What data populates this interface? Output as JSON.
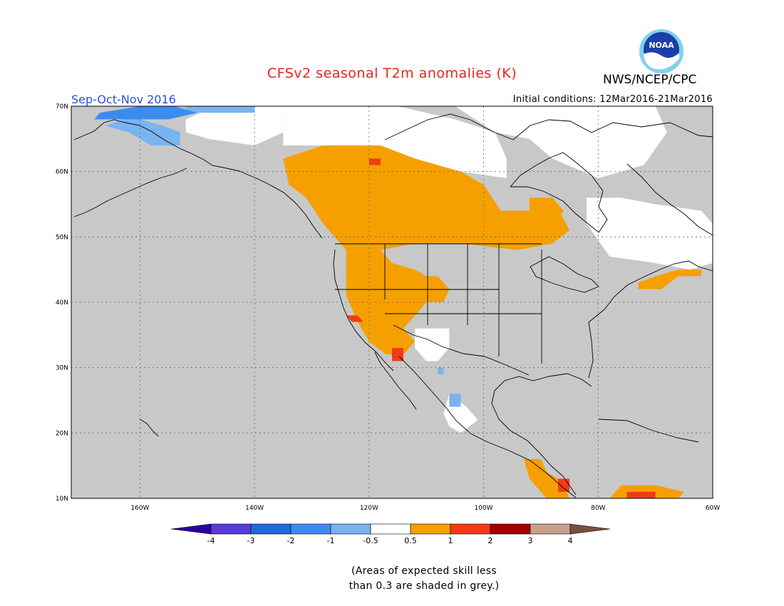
{
  "header": {
    "title": "CFSv2 seasonal T2m anomalies (K)",
    "org": "NWS/NCEP/CPC",
    "logo_text": "NOAA",
    "season": "Sep-Oct-Nov 2016",
    "initial_conditions": "Initial conditions: 12Mar2016-21Mar2016"
  },
  "map": {
    "lon_range": [
      -172,
      -60
    ],
    "lat_range": [
      10,
      70
    ],
    "lat_ticks": [
      {
        "value": 70,
        "label": "70N"
      },
      {
        "value": 60,
        "label": "60N"
      },
      {
        "value": 50,
        "label": "50N"
      },
      {
        "value": 40,
        "label": "40N"
      },
      {
        "value": 30,
        "label": "30N"
      },
      {
        "value": 20,
        "label": "20N"
      },
      {
        "value": 10,
        "label": "10N"
      }
    ],
    "lon_ticks": [
      {
        "value": -160,
        "label": "160W"
      },
      {
        "value": -140,
        "label": "140W"
      },
      {
        "value": -120,
        "label": "120W"
      },
      {
        "value": -100,
        "label": "100W"
      },
      {
        "value": -80,
        "label": "80W"
      },
      {
        "value": -60,
        "label": "60W"
      }
    ],
    "grid": true,
    "colors": {
      "no_skill": "#c8c8c8",
      "neutral": "#ffffff",
      "cool_0_5_1": "#78b4f0",
      "cool_1_2": "#3c8cf0",
      "warm_0_5_1": "#f5a000",
      "warm_1_2": "#f03c14"
    },
    "regions": [
      {
        "category": "neutral",
        "polygon": [
          [
            -147,
            70
          ],
          [
            -135,
            70
          ],
          [
            -135,
            66
          ],
          [
            -140,
            64
          ],
          [
            -148,
            65
          ],
          [
            -152,
            66
          ],
          [
            -152,
            68
          ]
        ]
      },
      {
        "category": "neutral",
        "polygon": [
          [
            -135,
            70
          ],
          [
            -115,
            70
          ],
          [
            -105,
            68
          ],
          [
            -98,
            66
          ],
          [
            -96,
            62
          ],
          [
            -96,
            59
          ],
          [
            -104,
            60
          ],
          [
            -115,
            62
          ],
          [
            -125,
            64
          ],
          [
            -135,
            64
          ]
        ]
      },
      {
        "category": "neutral",
        "polygon": [
          [
            -105,
            70
          ],
          [
            -70,
            70
          ],
          [
            -68,
            66
          ],
          [
            -72,
            61
          ],
          [
            -80,
            59
          ],
          [
            -88,
            62
          ],
          [
            -92,
            65
          ],
          [
            -98,
            66
          ]
        ]
      },
      {
        "category": "neutral",
        "polygon": [
          [
            -82,
            56
          ],
          [
            -76,
            56
          ],
          [
            -70,
            55
          ],
          [
            -62,
            54
          ],
          [
            -60,
            52
          ],
          [
            -60,
            46
          ],
          [
            -64,
            45
          ],
          [
            -70,
            46
          ],
          [
            -78,
            47
          ],
          [
            -82,
            52
          ]
        ]
      },
      {
        "category": "neutral",
        "polygon": [
          [
            -112,
            36
          ],
          [
            -109,
            36
          ],
          [
            -106,
            36
          ],
          [
            -106,
            33
          ],
          [
            -108,
            31
          ],
          [
            -110,
            31
          ],
          [
            -112,
            33
          ]
        ]
      },
      {
        "category": "neutral",
        "polygon": [
          [
            -106,
            26
          ],
          [
            -103,
            24
          ],
          [
            -101,
            22
          ],
          [
            -104,
            20
          ],
          [
            -106,
            21
          ],
          [
            -107,
            23
          ]
        ]
      },
      {
        "category": "cool_0_5_1",
        "polygon": [
          [
            -166,
            67
          ],
          [
            -163,
            68
          ],
          [
            -160,
            68
          ],
          [
            -156,
            67
          ],
          [
            -153,
            66
          ],
          [
            -153,
            64
          ],
          [
            -158,
            64
          ],
          [
            -162,
            66
          ]
        ]
      },
      {
        "category": "cool_0_5_1",
        "polygon": [
          [
            -152,
            70
          ],
          [
            -140,
            70
          ],
          [
            -140,
            69
          ],
          [
            -152,
            69
          ]
        ]
      },
      {
        "category": "cool_0_5_1",
        "polygon": [
          [
            -108,
            29
          ],
          [
            -107,
            29
          ],
          [
            -107,
            30
          ],
          [
            -108,
            30
          ]
        ]
      },
      {
        "category": "cool_0_5_1",
        "polygon": [
          [
            -106,
            24
          ],
          [
            -104,
            24
          ],
          [
            -104,
            26
          ],
          [
            -106,
            26
          ]
        ]
      },
      {
        "category": "cool_1_2",
        "polygon": [
          [
            -167,
            69
          ],
          [
            -160,
            70
          ],
          [
            -154,
            70
          ],
          [
            -150,
            69
          ],
          [
            -155,
            68
          ],
          [
            -162,
            68
          ],
          [
            -168,
            68
          ]
        ]
      },
      {
        "category": "warm_0_5_1",
        "polygon": [
          [
            -135,
            62
          ],
          [
            -128,
            64
          ],
          [
            -118,
            64
          ],
          [
            -112,
            62
          ],
          [
            -104,
            60
          ],
          [
            -100,
            58
          ],
          [
            -97,
            54
          ],
          [
            -92,
            54
          ],
          [
            -88,
            56
          ],
          [
            -85,
            51
          ],
          [
            -88,
            49
          ],
          [
            -94,
            48
          ],
          [
            -104,
            49
          ],
          [
            -112,
            49
          ],
          [
            -118,
            48
          ],
          [
            -124,
            48
          ],
          [
            -128,
            52
          ],
          [
            -131,
            56
          ],
          [
            -134,
            58
          ]
        ]
      },
      {
        "category": "warm_0_5_1",
        "polygon": [
          [
            -124,
            48
          ],
          [
            -118,
            48
          ],
          [
            -116,
            46
          ],
          [
            -112,
            45
          ],
          [
            -110,
            44
          ],
          [
            -107,
            42
          ],
          [
            -110,
            40
          ],
          [
            -112,
            38
          ],
          [
            -114,
            36
          ],
          [
            -112,
            34
          ],
          [
            -114,
            32
          ],
          [
            -117,
            32
          ],
          [
            -120,
            34
          ],
          [
            -122,
            37
          ],
          [
            -124,
            41
          ]
        ]
      },
      {
        "category": "warm_0_5_1",
        "polygon": [
          [
            -112,
            44
          ],
          [
            -108,
            44
          ],
          [
            -106,
            42
          ],
          [
            -107,
            40
          ],
          [
            -110,
            40
          ]
        ]
      },
      {
        "category": "warm_0_5_1",
        "polygon": [
          [
            -93,
            16
          ],
          [
            -90,
            16
          ],
          [
            -89,
            14
          ],
          [
            -87,
            13
          ],
          [
            -86,
            12
          ],
          [
            -85,
            10
          ],
          [
            -89,
            10
          ],
          [
            -92,
            13
          ]
        ]
      },
      {
        "category": "warm_0_5_1",
        "polygon": [
          [
            -78,
            10
          ],
          [
            -66,
            10
          ],
          [
            -65,
            11
          ],
          [
            -70,
            12
          ],
          [
            -76,
            12
          ]
        ]
      },
      {
        "category": "warm_0_5_1",
        "polygon": [
          [
            -73,
            42
          ],
          [
            -69,
            42
          ],
          [
            -66,
            44
          ],
          [
            -62,
            44
          ],
          [
            -62,
            45
          ],
          [
            -66,
            45
          ],
          [
            -70,
            44
          ],
          [
            -73,
            43
          ]
        ]
      },
      {
        "category": "warm_0_5_1",
        "polygon": [
          [
            -92,
            56
          ],
          [
            -88,
            56
          ],
          [
            -86,
            54
          ],
          [
            -88,
            52
          ],
          [
            -92,
            53
          ]
        ]
      },
      {
        "category": "warm_1_2",
        "polygon": [
          [
            -124,
            38
          ],
          [
            -122,
            38
          ],
          [
            -121,
            37
          ],
          [
            -123,
            37
          ]
        ]
      },
      {
        "category": "warm_1_2",
        "polygon": [
          [
            -116,
            33
          ],
          [
            -114,
            33
          ],
          [
            -114,
            31
          ],
          [
            -116,
            31
          ]
        ]
      },
      {
        "category": "warm_1_2",
        "polygon": [
          [
            -120,
            62
          ],
          [
            -118,
            62
          ],
          [
            -118,
            61
          ],
          [
            -120,
            61
          ]
        ]
      },
      {
        "category": "warm_1_2",
        "polygon": [
          [
            -87,
            13
          ],
          [
            -85,
            13
          ],
          [
            -85,
            11
          ],
          [
            -87,
            11
          ]
        ]
      },
      {
        "category": "warm_1_2",
        "polygon": [
          [
            -75,
            11
          ],
          [
            -70,
            11
          ],
          [
            -70,
            10
          ],
          [
            -75,
            10
          ]
        ]
      }
    ]
  },
  "legend": {
    "levels": [
      "-4",
      "-3",
      "-2",
      "-1",
      "-0.5",
      "0.5",
      "1",
      "2",
      "3",
      "4"
    ],
    "colors": [
      "#2b00a0",
      "#5a3ad6",
      "#1e6ad8",
      "#3c8cf0",
      "#78b4f0",
      "#ffffff",
      "#f5a000",
      "#f03c14",
      "#a00000",
      "#c8a08c",
      "#785040"
    ]
  },
  "footnote": {
    "line1": "(Areas of expected skill less",
    "line2": "than 0.3 are shaded in grey.)"
  }
}
